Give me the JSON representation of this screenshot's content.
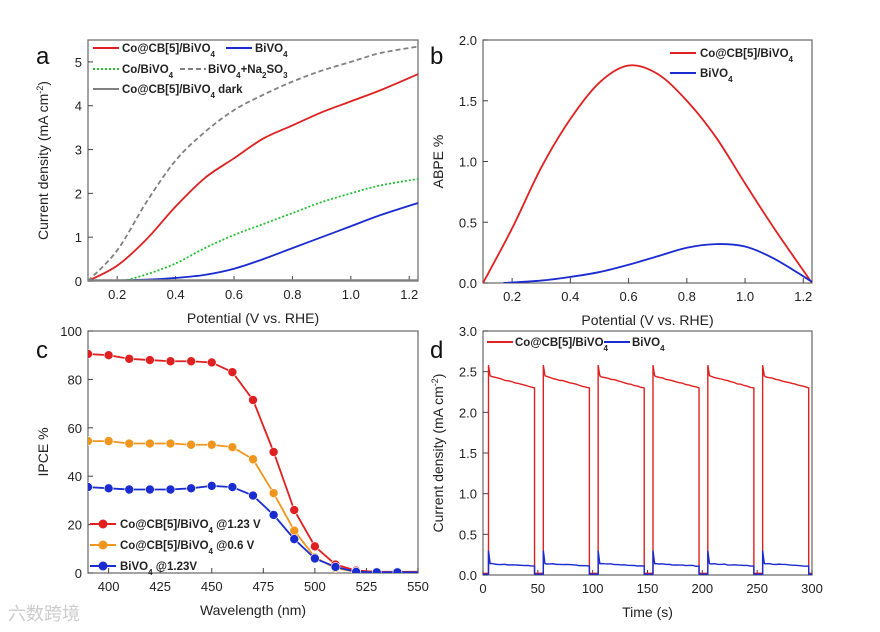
{
  "watermark": "六数跨境",
  "chart_data": [
    {
      "panel": "a",
      "type": "line",
      "xlabel": "Potential (V vs. RHE)",
      "ylabel": "Current density (mA cm-2)",
      "xlim": [
        0.1,
        1.23
      ],
      "ylim": [
        0,
        5.5
      ],
      "xticks": [
        0.2,
        0.4,
        0.6,
        0.8,
        1.0,
        1.2
      ],
      "xtick_labels": [
        "0.2",
        "0.4",
        "0.6",
        "0.8",
        "1.0",
        "1.2"
      ],
      "yticks": [
        0,
        1,
        2,
        3,
        4,
        5
      ],
      "series": [
        {
          "name": "Co@CB[5]/BiVO4",
          "color": "#e02020",
          "dash": "",
          "x": [
            0.1,
            0.2,
            0.3,
            0.4,
            0.5,
            0.6,
            0.7,
            0.8,
            0.9,
            1.0,
            1.1,
            1.23
          ],
          "y": [
            0,
            0.35,
            0.95,
            1.7,
            2.35,
            2.8,
            3.25,
            3.55,
            3.85,
            4.1,
            4.35,
            4.72
          ]
        },
        {
          "name": "BiVO4",
          "color": "#1a2bd0",
          "dash": "",
          "x": [
            0.1,
            0.3,
            0.4,
            0.5,
            0.6,
            0.7,
            0.8,
            0.9,
            1.0,
            1.1,
            1.23
          ],
          "y": [
            0,
            0.03,
            0.07,
            0.14,
            0.28,
            0.5,
            0.75,
            1.0,
            1.25,
            1.5,
            1.78
          ]
        },
        {
          "name": "Co/BiVO4",
          "color": "#22c030",
          "dash": "2,2",
          "x": [
            0.22,
            0.3,
            0.4,
            0.5,
            0.6,
            0.7,
            0.8,
            0.9,
            1.0,
            1.1,
            1.23
          ],
          "y": [
            0,
            0.15,
            0.4,
            0.75,
            1.05,
            1.3,
            1.55,
            1.8,
            2.0,
            2.18,
            2.33
          ]
        },
        {
          "name": "BiVO4+Na2SO3",
          "color": "#808080",
          "dash": "5,3",
          "x": [
            0.1,
            0.2,
            0.3,
            0.4,
            0.5,
            0.6,
            0.7,
            0.8,
            0.9,
            1.0,
            1.1,
            1.23
          ],
          "y": [
            0,
            0.7,
            1.8,
            2.75,
            3.4,
            3.9,
            4.25,
            4.55,
            4.8,
            5.0,
            5.2,
            5.35
          ]
        },
        {
          "name": "Co@CB[5]/BiVO4 dark",
          "color": "#808080",
          "dash": "",
          "x": [
            0.1,
            1.23
          ],
          "y": [
            0.02,
            0.02
          ]
        }
      ],
      "legend_labels": [
        "Co@CB[5]/BiVO",
        "BiVO",
        "Co/BiVO",
        "BiVO",
        "+Na",
        "SO",
        "Co@CB[5]/BiVO",
        " dark"
      ]
    },
    {
      "panel": "b",
      "type": "line",
      "xlabel": "Potential (V vs. RHE)",
      "ylabel": "ABPE %",
      "xlim": [
        0.1,
        1.23
      ],
      "ylim": [
        0,
        2.0
      ],
      "xticks": [
        0.2,
        0.4,
        0.6,
        0.8,
        1.0,
        1.2
      ],
      "xtick_labels": [
        "0.2",
        "0.4",
        "0.6",
        "0.8",
        "1.0",
        "1.2"
      ],
      "yticks": [
        0,
        0.5,
        1.0,
        1.5,
        2.0
      ],
      "ytick_labels": [
        "0.0",
        "0.5",
        "1.0",
        "1.5",
        "2.0"
      ],
      "series": [
        {
          "name": "Co@CB[5]/BiVO4",
          "color": "#e02020",
          "x": [
            0.1,
            0.2,
            0.3,
            0.4,
            0.5,
            0.6,
            0.7,
            0.8,
            0.9,
            1.0,
            1.1,
            1.23
          ],
          "y": [
            0,
            0.45,
            0.95,
            1.35,
            1.65,
            1.79,
            1.72,
            1.5,
            1.2,
            0.82,
            0.45,
            0
          ]
        },
        {
          "name": "BiVO4",
          "color": "#1a2bd0",
          "x": [
            0.17,
            0.3,
            0.4,
            0.5,
            0.6,
            0.7,
            0.8,
            0.9,
            1.0,
            1.1,
            1.23
          ],
          "y": [
            0,
            0.02,
            0.05,
            0.09,
            0.15,
            0.22,
            0.29,
            0.32,
            0.3,
            0.2,
            0.01
          ]
        }
      ]
    },
    {
      "panel": "c",
      "type": "line",
      "xlabel": "Wavelength (nm)",
      "ylabel": "IPCE %",
      "xlim": [
        390,
        550
      ],
      "ylim": [
        0,
        100
      ],
      "xticks": [
        400,
        425,
        450,
        475,
        500,
        525,
        550
      ],
      "xtick_labels": [
        "400",
        "425",
        "450",
        "475",
        "500",
        "525",
        "550"
      ],
      "yticks": [
        0,
        20,
        40,
        60,
        80,
        100
      ],
      "x": [
        390,
        400,
        410,
        420,
        430,
        440,
        450,
        460,
        470,
        480,
        490,
        500,
        510,
        520,
        530,
        540
      ],
      "series": [
        {
          "name": "Co@CB[5]/BiVO4 @1.23 V",
          "color": "#e02020",
          "y": [
            90.5,
            90,
            88.5,
            88,
            87.5,
            87.5,
            87,
            83,
            71.5,
            50,
            26,
            11,
            3.5,
            1,
            0.5,
            0.5
          ]
        },
        {
          "name": "Co@CB[5]/BiVO4 @0.6 V",
          "color": "#f0961e",
          "y": [
            54.5,
            54.5,
            53.5,
            53.5,
            53.5,
            53,
            53,
            52,
            47,
            33,
            17.5,
            6.5,
            2,
            0.5,
            0.3,
            0.3
          ]
        },
        {
          "name": "BiVO4 @1.23V",
          "color": "#1a2bd0",
          "y": [
            35.5,
            35,
            34.5,
            34.5,
            34.5,
            35,
            36,
            35.5,
            32,
            24,
            14,
            6,
            2.5,
            0.5,
            0.3,
            0.3
          ]
        }
      ],
      "legend_labels": [
        "Co@CB[5]/BiVO",
        " @1.23 V",
        "Co@CB[5]/BiVO",
        " @0.6 V",
        "BiVO",
        " @1.23V"
      ]
    },
    {
      "panel": "d",
      "type": "line",
      "xlabel": "Time (s)",
      "ylabel": "Current density (mA cm-2)",
      "xlim": [
        0,
        300
      ],
      "ylim": [
        0,
        3.0
      ],
      "xticks": [
        0,
        50,
        100,
        150,
        200,
        250,
        300
      ],
      "xtick_labels": [
        "0",
        "50",
        "100",
        "150",
        "200",
        "250",
        "300"
      ],
      "yticks": [
        0,
        0.5,
        1,
        1.5,
        2,
        2.5,
        3
      ],
      "ytick_labels": [
        "0.0",
        "0.5",
        "1.0",
        "1.5",
        "2.0",
        "2.5",
        "3.0"
      ],
      "light_on_times": [
        5,
        55,
        105,
        155,
        205,
        255
      ],
      "light_off_times": [
        47,
        97,
        147,
        197,
        247,
        297
      ],
      "series": [
        {
          "name": "Co@CB[5]/BiVO4",
          "color": "#e02020",
          "spike": 2.58,
          "plateau_start": 2.45,
          "plateau_end": 2.3,
          "dark": 0.02
        },
        {
          "name": "BiVO4",
          "color": "#1a2bd0",
          "spike": 0.3,
          "plateau_start": 0.14,
          "plateau_end": 0.11,
          "dark": 0.01
        }
      ],
      "legend_labels": [
        "Co@CB[5]/BiVO",
        "BiVO"
      ]
    }
  ],
  "panel_labels": [
    "a",
    "b",
    "c",
    "d"
  ]
}
